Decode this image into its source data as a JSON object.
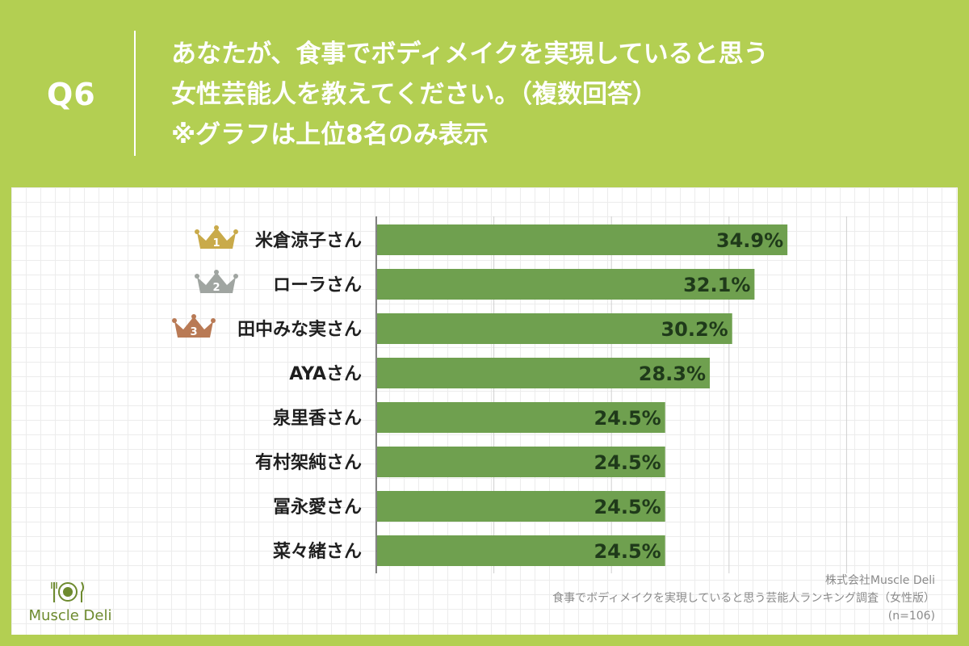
{
  "header": {
    "q_label": "Q6",
    "question_lines": [
      "あなたが、食事でボディメイクを実現していると思う",
      "女性芸能人を教えてください。（複数回答）",
      "※グラフは上位8名のみ表示"
    ]
  },
  "chart_data": {
    "type": "bar",
    "orientation": "horizontal",
    "categories": [
      "米倉涼子さん",
      "ローラさん",
      "田中みな実さん",
      "AYAさん",
      "泉里香さん",
      "有村架純さん",
      "冨永愛さん",
      "菜々緒さん"
    ],
    "values": [
      34.9,
      32.1,
      30.2,
      28.3,
      24.5,
      24.5,
      24.5,
      24.5
    ],
    "value_labels": [
      "34.9%",
      "32.1%",
      "30.2%",
      "28.3%",
      "24.5%",
      "24.5%",
      "24.5%",
      "24.5%"
    ],
    "xlim": [
      0,
      50
    ],
    "grid": true,
    "bar_color": "#6fa04f",
    "ranks": [
      {
        "rank": "1",
        "color": "#c9aa4a"
      },
      {
        "rank": "2",
        "color": "#a0a5a1"
      },
      {
        "rank": "3",
        "color": "#b97a55"
      }
    ]
  },
  "source": {
    "company": "株式会社Muscle Deli",
    "survey": "食事でボディメイクを実現していると思う芸能人ランキング調査（女性版）",
    "sample": "(n=106)"
  },
  "logo": {
    "text": "Muscle Deli",
    "icon": "fork-knife-plate-icon"
  },
  "colors": {
    "background": "#b3cf52",
    "panel": "#ffffff",
    "label_text": "#1f1f1f",
    "value_text": "#1f3a1a"
  }
}
